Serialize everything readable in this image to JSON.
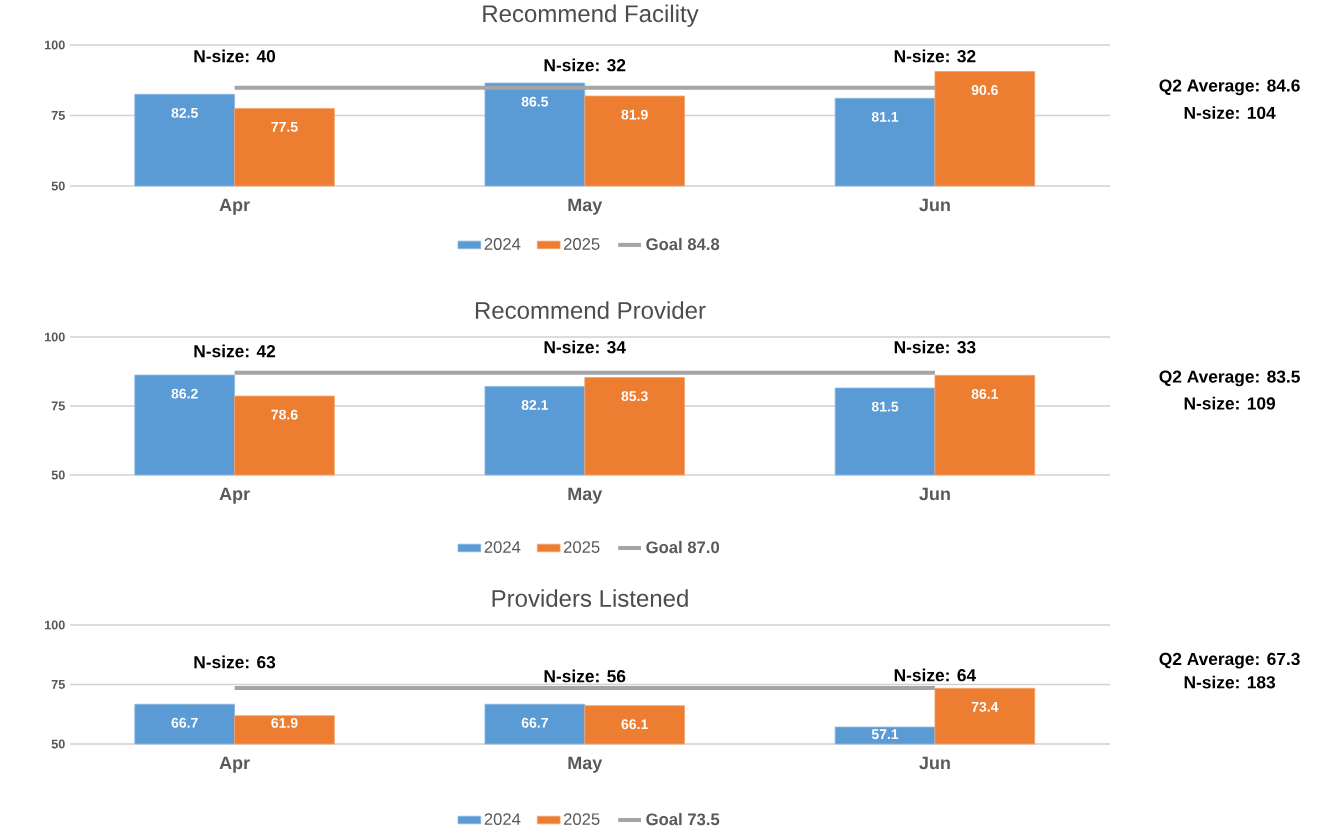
{
  "chart_data": [
    {
      "type": "bar",
      "title": "Recommend Facility",
      "categories": [
        "Apr",
        "May",
        "Jun"
      ],
      "ylim": [
        50,
        100
      ],
      "yticks": [
        50,
        75,
        100
      ],
      "grid": "y",
      "legend": "bottom",
      "series": [
        {
          "name": "2024",
          "color": "#5b9bd5",
          "values": [
            82.5,
            86.5,
            81.1
          ],
          "value_labels": [
            "82.5",
            "86.5",
            "81.1"
          ]
        },
        {
          "name": "2025",
          "color": "#ed7d31",
          "values": [
            77.5,
            81.9,
            90.6
          ],
          "value_labels": [
            "77.5",
            "81.9",
            "90.6"
          ]
        },
        {
          "name": "**Goal 84.8**",
          "type": "line",
          "color": "#a5a5a5",
          "values": [
            84.8,
            84.8,
            84.8
          ]
        }
      ],
      "annotations": [
        "N-size: 40",
        "N-size: 32",
        "N-size: 32",
        "Q2 Average: 84.6",
        "N-size: 104"
      ]
    },
    {
      "type": "bar",
      "title": "Recommend Provider",
      "categories": [
        "Apr",
        "May",
        "Jun"
      ],
      "ylim": [
        50,
        100
      ],
      "yticks": [
        50,
        75,
        100
      ],
      "grid": "y",
      "legend": "bottom",
      "series": [
        {
          "name": "2024",
          "color": "#5b9bd5",
          "values": [
            86.2,
            82.1,
            81.5
          ],
          "value_labels": [
            "86.2",
            "82.1",
            "81.5"
          ]
        },
        {
          "name": "2025",
          "color": "#ed7d31",
          "values": [
            78.6,
            85.3,
            86.1
          ],
          "value_labels": [
            "78.6",
            "85.3",
            "86.1"
          ]
        },
        {
          "name": "**Goal 87.0**",
          "type": "line",
          "color": "#a5a5a5",
          "values": [
            87.0,
            87.0,
            87.0
          ]
        }
      ],
      "annotations": [
        "N-size: 42",
        "N-size: 34",
        "N-size: 33",
        "Q2 Average: 83.5",
        "N-size: 109"
      ]
    },
    {
      "type": "bar",
      "title": "Providers Listened",
      "categories": [
        "Apr",
        "May",
        "Jun"
      ],
      "ylim": [
        50,
        100
      ],
      "yticks": [
        50,
        75,
        100
      ],
      "grid": "y",
      "legend": "bottom",
      "series": [
        {
          "name": "2024",
          "color": "#5b9bd5",
          "values": [
            66.7,
            66.7,
            57.1
          ],
          "value_labels": [
            "66.7",
            "66.7",
            "57.1"
          ]
        },
        {
          "name": "2025",
          "color": "#ed7d31",
          "values": [
            61.9,
            66.1,
            73.4
          ],
          "value_labels": [
            "61.9",
            "66.1",
            "73.4"
          ]
        },
        {
          "name": "**Goal 73.5**",
          "type": "line",
          "color": "#a5a5a5",
          "values": [
            73.5,
            73.5,
            73.5
          ]
        }
      ],
      "annotations": [
        "N-size: 63",
        "N-size: 56",
        "N-size: 64",
        "Q2 Average: 67.3",
        "N-size: 183"
      ]
    }
  ]
}
